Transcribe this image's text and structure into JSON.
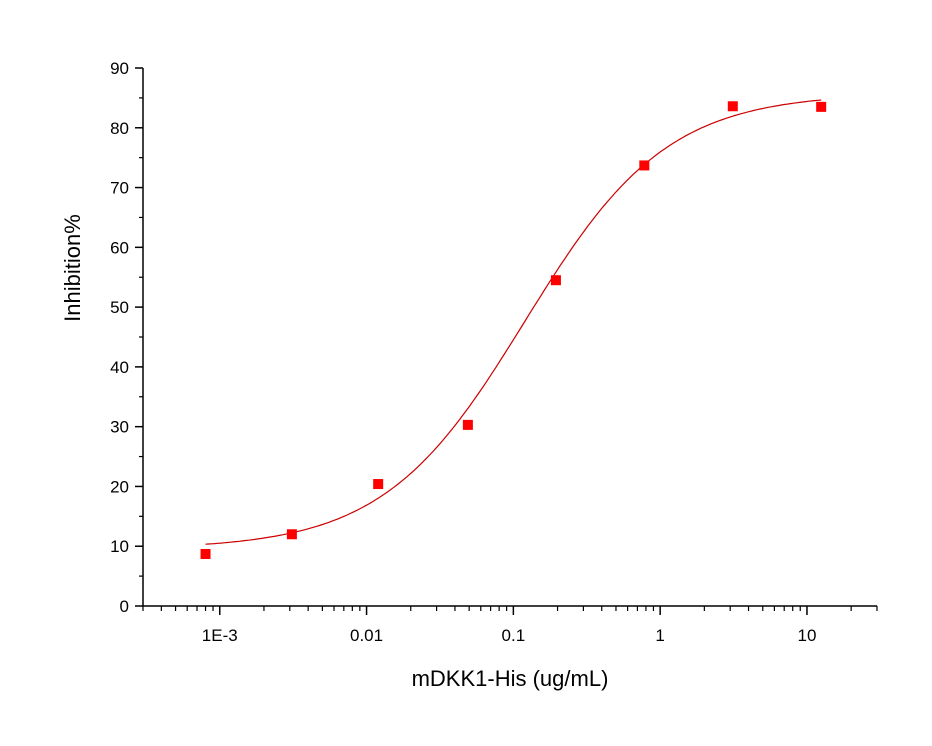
{
  "chart_data": {
    "type": "scatter",
    "title": "",
    "xlabel": "mDKK1-His (ug/mL)",
    "ylabel": "Inhibition%",
    "xscale": "log",
    "xlim": [
      0.0003,
      30
    ],
    "ylim": [
      0,
      90
    ],
    "grid": false,
    "legend": "none",
    "x_tick_labels": [
      "1E-3",
      "0.01",
      "0.1",
      "1",
      "10"
    ],
    "y_tick_labels": [
      "0",
      "10",
      "20",
      "30",
      "40",
      "50",
      "60",
      "70",
      "80",
      "90"
    ],
    "series": [
      {
        "marker": "square",
        "color": "#ff0000",
        "points": [
          {
            "x": 0.0008,
            "y": 8.7
          },
          {
            "x": 0.0031,
            "y": 12.0
          },
          {
            "x": 0.012,
            "y": 20.4
          },
          {
            "x": 0.049,
            "y": 30.3
          },
          {
            "x": 0.195,
            "y": 54.5
          },
          {
            "x": 0.78,
            "y": 73.7
          },
          {
            "x": 3.125,
            "y": 83.6
          },
          {
            "x": 12.5,
            "y": 83.5
          }
        ]
      }
    ],
    "fit_curve": {
      "model": "4PL",
      "color": "#cc0000",
      "bottom": 9.5,
      "top": 85.8,
      "ec50": 0.12,
      "hill": 0.9,
      "x_range": [
        0.0008,
        12.5
      ]
    }
  }
}
